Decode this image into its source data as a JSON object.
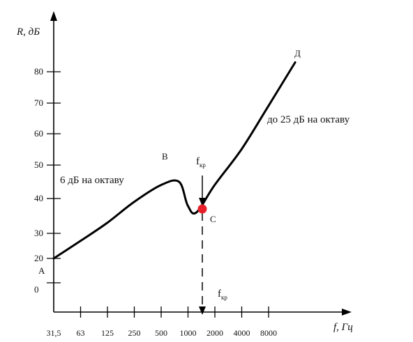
{
  "chart_data": {
    "type": "line",
    "ylabel": "R, дБ",
    "xlabel": "f, Гц",
    "y_ticks": [
      "0",
      "20",
      "30",
      "40",
      "50",
      "60",
      "70",
      "80"
    ],
    "x_ticks": [
      "31,5",
      "63",
      "125",
      "250",
      "500",
      "1000",
      "2000",
      "4000",
      "8000"
    ],
    "ylim": [
      0,
      85
    ],
    "series": [
      {
        "x": [
          31.5,
          63,
          125,
          250,
          500,
          800,
          1000,
          1250,
          2000,
          4000,
          8000,
          16000
        ],
        "y": [
          20,
          27,
          33,
          39,
          44,
          45,
          38,
          36,
          44,
          55,
          69,
          83
        ]
      }
    ],
    "points": {
      "a": "А",
      "b": "В",
      "c": "С",
      "d": "Д"
    },
    "annotations": {
      "left_slope": "6 дБ на октаву",
      "right_slope": "до 25 дБ на октаву",
      "fkr_base": "f",
      "fkr_sub": "кр"
    },
    "highlight_color": "#e8202a",
    "line_color": "#000000"
  }
}
